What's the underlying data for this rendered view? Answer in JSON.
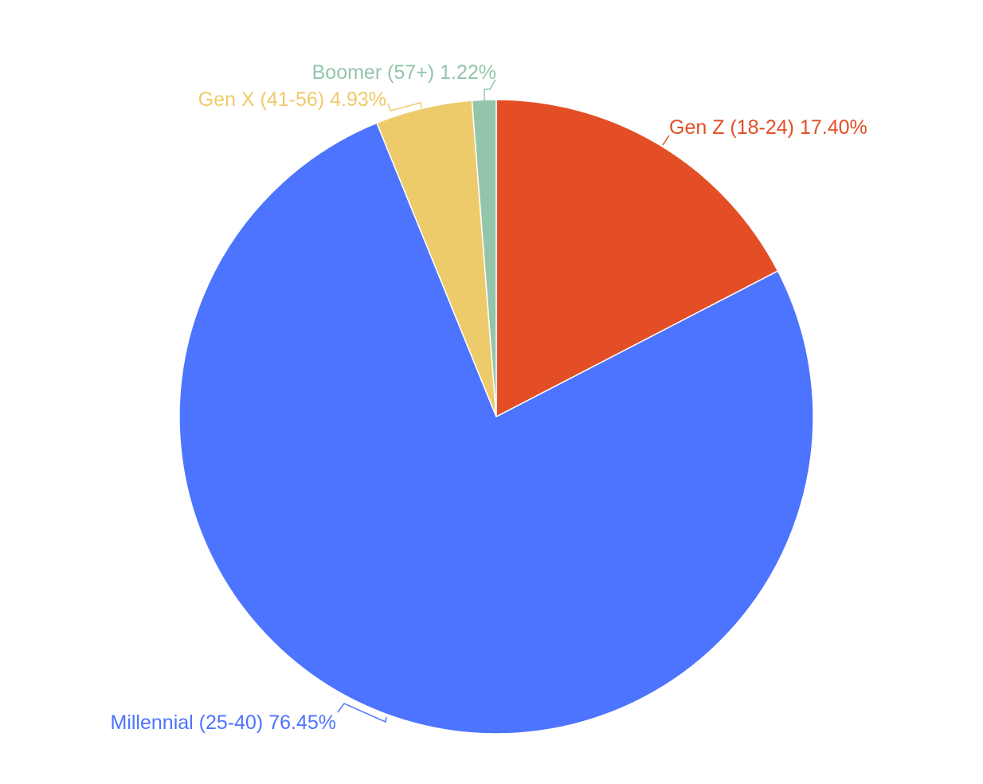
{
  "chart_data": {
    "type": "pie",
    "categories": [
      "Gen Z (18-24)",
      "Millennial (25-40)",
      "Gen X (41-56)",
      "Boomer (57+)"
    ],
    "values": [
      17.4,
      76.45,
      4.93,
      1.22
    ],
    "value_labels": [
      "17.40%",
      "76.45%",
      "4.93%",
      "1.22%"
    ],
    "colors": [
      "#e34e26",
      "#4d74fe",
      "#eecb6a",
      "#93c5ab"
    ]
  }
}
